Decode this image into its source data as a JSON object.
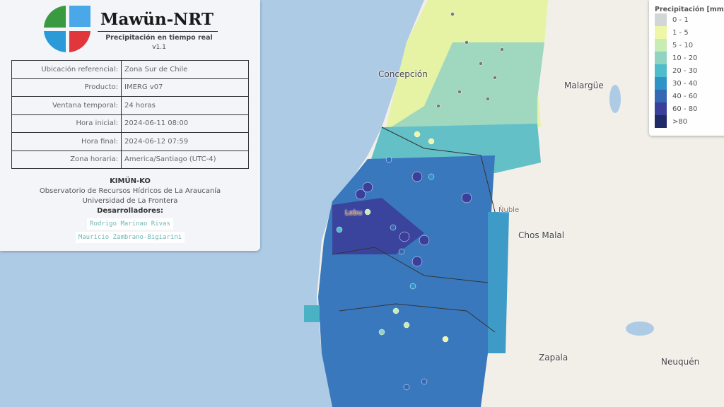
{
  "info": {
    "title": "Mawün-NRT",
    "subtitle": "Precipitación en tiempo real",
    "version": "v1.1",
    "rows": [
      {
        "key": "Ubicación referencial:",
        "value": "Zona Sur de Chile"
      },
      {
        "key": "Producto:",
        "value": "IMERG v07"
      },
      {
        "key": "Ventana temporal:",
        "value": "24 horas"
      },
      {
        "key": "Hora inicial:",
        "value": "2024-06-11 08:00"
      },
      {
        "key": "Hora final:",
        "value": "2024-06-12 07:59"
      },
      {
        "key": "Zona horaria:",
        "value": "America/Santiago (UTC-4)"
      }
    ],
    "org": "KIMÜN-KO",
    "org_line1": "Observatorio de Recursos Hídricos de La Araucanía",
    "org_line2": "Universidad de La Frontera",
    "dev_heading": "Desarrolladores:",
    "developers": [
      "Rodrigo Marinao Rivas",
      "Mauricio Zambrano-Bigiarini"
    ]
  },
  "legend": {
    "title": "Precipitación [mm]",
    "items": [
      {
        "label": "0 - 1",
        "color": "#d3d6d8"
      },
      {
        "label": "1 - 5",
        "color": "#eef7a8"
      },
      {
        "label": "5 - 10",
        "color": "#c9ebb4"
      },
      {
        "label": "10 - 20",
        "color": "#8fd3c0"
      },
      {
        "label": "20 - 30",
        "color": "#4fbccc"
      },
      {
        "label": "30 - 40",
        "color": "#2f93c8"
      },
      {
        "label": "40 - 60",
        "color": "#3468b3"
      },
      {
        "label": "60 - 80",
        "color": "#3a3f9a"
      },
      {
        "label": ">80",
        "color": "#1f2a66"
      }
    ]
  },
  "map": {
    "places": [
      "Concepción",
      "Malargüe",
      "Chos Malal",
      "Zapala",
      "Neuquén",
      "Ñuble",
      "Lebu"
    ],
    "ocean_color": "#aecbe6",
    "land_color": "#f2efe9"
  }
}
